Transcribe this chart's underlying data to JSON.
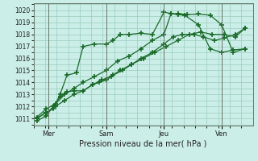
{
  "background_color": "#cceee8",
  "grid_color": "#99ccbb",
  "line_color": "#1a6b2a",
  "xlabel": "Pression niveau de la mer( hPa )",
  "ylim": [
    1010.4,
    1020.6
  ],
  "xlim": [
    -0.15,
    9.35
  ],
  "yticks": [
    1011,
    1012,
    1013,
    1014,
    1015,
    1016,
    1017,
    1018,
    1019,
    1020
  ],
  "day_labels": [
    "Mer",
    "Sam",
    "Jeu",
    "Ven"
  ],
  "day_positions": [
    0.5,
    3.0,
    5.5,
    8.0
  ],
  "series1_x": [
    0.0,
    0.4,
    0.7,
    1.0,
    1.3,
    1.6,
    2.0,
    2.4,
    2.7,
    3.0,
    3.3,
    3.7,
    4.1,
    4.5,
    5.0,
    5.5,
    5.9,
    6.3,
    6.8,
    7.2,
    7.7,
    8.1,
    8.6,
    9.0
  ],
  "series1_y": [
    1010.8,
    1011.2,
    1012.0,
    1012.8,
    1013.2,
    1013.3,
    1013.3,
    1013.8,
    1014.0,
    1014.2,
    1014.6,
    1015.0,
    1015.5,
    1016.0,
    1016.5,
    1017.2,
    1017.8,
    1018.0,
    1018.0,
    1017.8,
    1017.5,
    1017.7,
    1018.0,
    1018.5
  ],
  "series2_x": [
    0.0,
    0.4,
    0.8,
    1.2,
    1.6,
    2.0,
    2.4,
    2.8,
    3.2,
    3.6,
    4.1,
    4.6,
    5.1,
    5.6,
    6.1,
    6.6,
    7.1,
    7.6,
    8.1,
    8.6,
    9.0
  ],
  "series2_y": [
    1011.0,
    1011.5,
    1012.0,
    1012.5,
    1013.0,
    1013.3,
    1013.8,
    1014.2,
    1014.5,
    1015.0,
    1015.5,
    1016.0,
    1016.5,
    1017.0,
    1017.5,
    1018.0,
    1018.2,
    1018.0,
    1018.0,
    1017.8,
    1018.5
  ],
  "series3_x": [
    0.0,
    0.4,
    0.7,
    1.0,
    1.3,
    1.7,
    2.0,
    2.5,
    3.0,
    3.3,
    3.6,
    4.0,
    4.5,
    5.0,
    5.5,
    5.8,
    6.1,
    6.4,
    7.0,
    7.5,
    8.0,
    8.5,
    9.0
  ],
  "series3_y": [
    1011.0,
    1011.5,
    1011.8,
    1013.0,
    1014.6,
    1014.8,
    1017.0,
    1017.2,
    1017.2,
    1017.5,
    1018.0,
    1018.0,
    1018.1,
    1018.0,
    1019.85,
    1019.75,
    1019.65,
    1019.6,
    1018.8,
    1016.8,
    1016.5,
    1016.7,
    1016.8
  ],
  "series4_x": [
    0.0,
    0.4,
    0.8,
    1.2,
    1.6,
    2.0,
    2.5,
    3.0,
    3.5,
    4.0,
    4.5,
    5.0,
    5.5,
    5.8,
    6.1,
    6.5,
    7.0,
    7.5,
    8.0,
    8.5,
    9.0
  ],
  "series4_y": [
    1011.1,
    1011.8,
    1012.2,
    1013.0,
    1013.5,
    1014.0,
    1014.5,
    1015.0,
    1015.8,
    1016.2,
    1016.8,
    1017.5,
    1018.0,
    1019.7,
    1019.75,
    1019.65,
    1019.7,
    1019.6,
    1018.8,
    1016.5,
    1016.8
  ]
}
